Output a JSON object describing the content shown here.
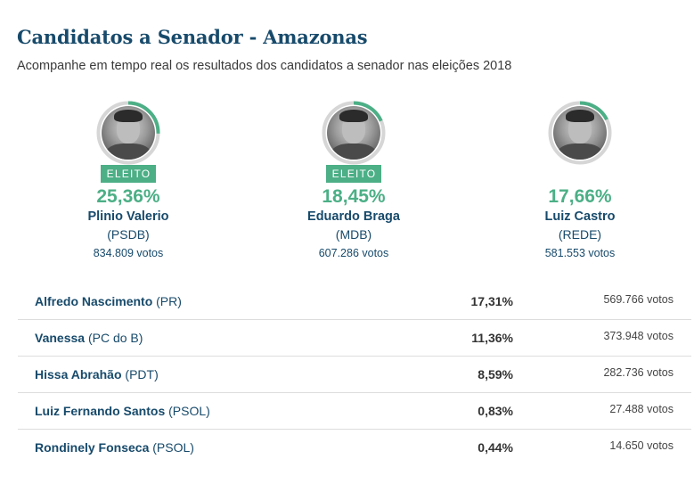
{
  "header": {
    "title": "Candidatos a Senador - Amazonas",
    "subtitle": "Acompanhe em tempo real os resultados dos candidatos a senador nas eleições 2018"
  },
  "colors": {
    "accent": "#4caf86",
    "ring_track": "#d6d6d6",
    "title": "#174a6b"
  },
  "top_candidates": [
    {
      "name": "Plinio Valerio",
      "party": "(PSDB)",
      "percent": "25,36%",
      "percent_value": 25.36,
      "votes": "834.809 votos",
      "badge": "ELEITO",
      "elected": true
    },
    {
      "name": "Eduardo Braga",
      "party": "(MDB)",
      "percent": "18,45%",
      "percent_value": 18.45,
      "votes": "607.286 votos",
      "badge": "ELEITO",
      "elected": true
    },
    {
      "name": "Luiz Castro",
      "party": "(REDE)",
      "percent": "17,66%",
      "percent_value": 17.66,
      "votes": "581.553 votos",
      "badge": "",
      "elected": false
    }
  ],
  "other_candidates": [
    {
      "name": "Alfredo Nascimento",
      "party": "(PR)",
      "percent": "17,31%",
      "votes": "569.766 votos"
    },
    {
      "name": "Vanessa",
      "party": "(PC do B)",
      "percent": "11,36%",
      "votes": "373.948 votos"
    },
    {
      "name": "Hissa Abrahão",
      "party": "(PDT)",
      "percent": "8,59%",
      "votes": "282.736 votos"
    },
    {
      "name": "Luiz Fernando Santos",
      "party": "(PSOL)",
      "percent": "0,83%",
      "votes": "27.488 votos"
    },
    {
      "name": "Rondinely Fonseca",
      "party": "(PSOL)",
      "percent": "0,44%",
      "votes": "14.650 votos"
    }
  ]
}
